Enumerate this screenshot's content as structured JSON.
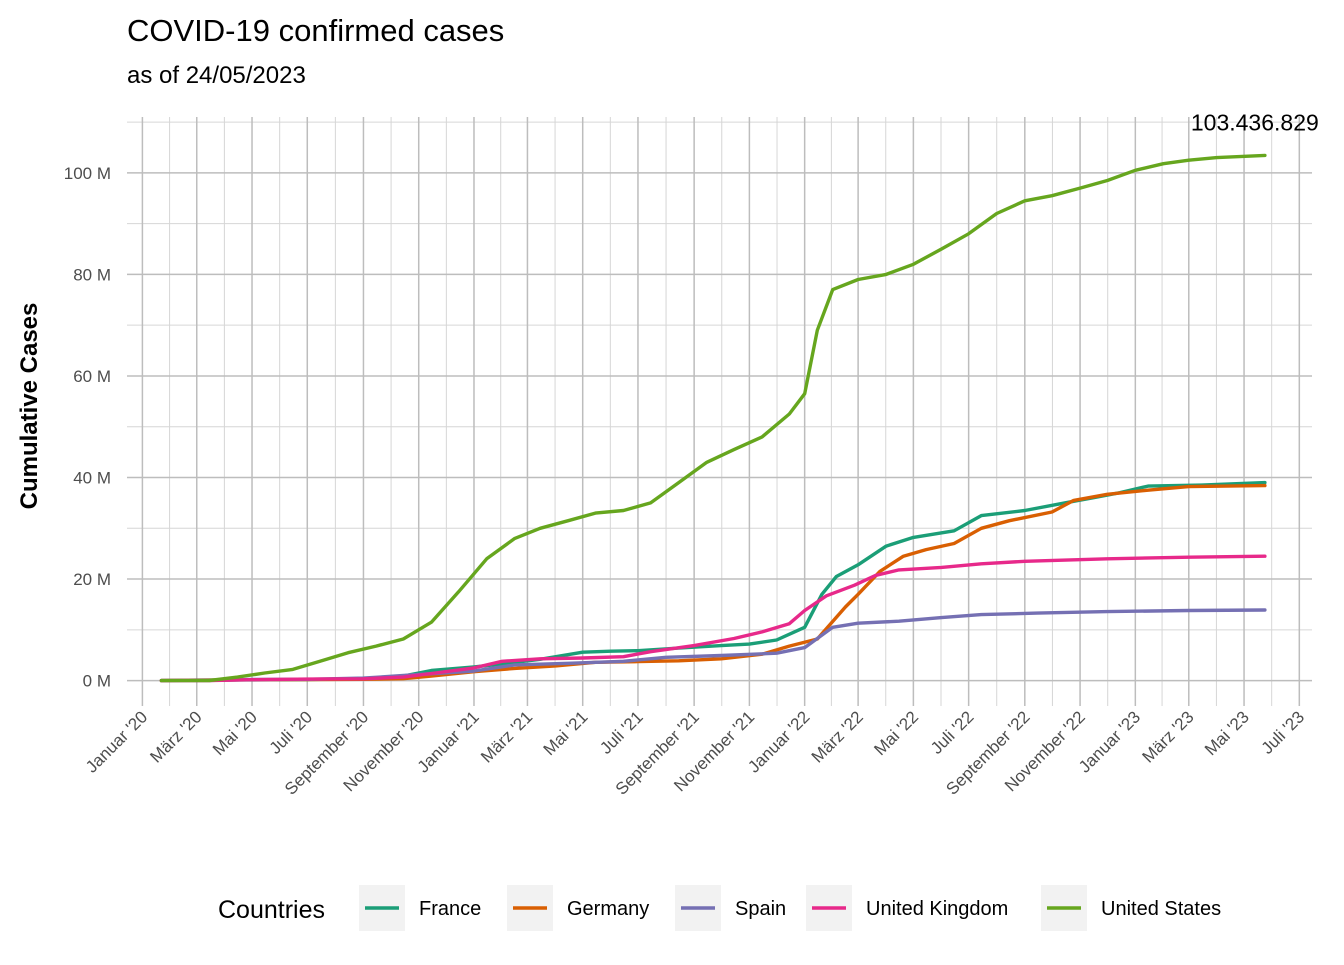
{
  "chart_data": {
    "type": "line",
    "title": "COVID-19 confirmed cases",
    "subtitle": "as of 24/05/2023",
    "xlabel": "",
    "ylabel": "Cumulative Cases",
    "x_range": [
      "2019-12-15",
      "2023-07-15"
    ],
    "ylim": [
      -5000000,
      111000000
    ],
    "y_ticks": [
      {
        "value": 0,
        "label": "0 M"
      },
      {
        "value": 20000000,
        "label": "20 M"
      },
      {
        "value": 40000000,
        "label": "40 M"
      },
      {
        "value": 60000000,
        "label": "60 M"
      },
      {
        "value": 80000000,
        "label": "80 M"
      },
      {
        "value": 100000000,
        "label": "100 M"
      }
    ],
    "x_ticks": [
      {
        "date": "2020-01-01",
        "label": "Januar '20"
      },
      {
        "date": "2020-03-01",
        "label": "März '20"
      },
      {
        "date": "2020-05-01",
        "label": "Mai '20"
      },
      {
        "date": "2020-07-01",
        "label": "Juli '20"
      },
      {
        "date": "2020-09-01",
        "label": "September '20"
      },
      {
        "date": "2020-11-01",
        "label": "November '20"
      },
      {
        "date": "2021-01-01",
        "label": "Januar '21"
      },
      {
        "date": "2021-03-01",
        "label": "März '21"
      },
      {
        "date": "2021-05-01",
        "label": "Mai '21"
      },
      {
        "date": "2021-07-01",
        "label": "Juli '21"
      },
      {
        "date": "2021-09-01",
        "label": "September '21"
      },
      {
        "date": "2021-11-01",
        "label": "November '21"
      },
      {
        "date": "2022-01-01",
        "label": "Januar '22"
      },
      {
        "date": "2022-03-01",
        "label": "März '22"
      },
      {
        "date": "2022-05-01",
        "label": "Mai '22"
      },
      {
        "date": "2022-07-01",
        "label": "Juli '22"
      },
      {
        "date": "2022-09-01",
        "label": "September '22"
      },
      {
        "date": "2022-11-01",
        "label": "November '22"
      },
      {
        "date": "2023-01-01",
        "label": "Januar '23"
      },
      {
        "date": "2023-03-01",
        "label": "März '23"
      },
      {
        "date": "2023-05-01",
        "label": "Mai '23"
      },
      {
        "date": "2023-07-01",
        "label": "Juli '23"
      }
    ],
    "grid": true,
    "legend_title": "Countries",
    "legend_position": "bottom",
    "annotation": {
      "text": "103.436.829",
      "date": "2023-05-24",
      "value": 103436829
    },
    "series": [
      {
        "name": "France",
        "color": "#1B9E77",
        "points": [
          [
            "2020-01-22",
            0
          ],
          [
            "2020-03-01",
            100000
          ],
          [
            "2020-05-01",
            150000
          ],
          [
            "2020-07-01",
            200000
          ],
          [
            "2020-09-01",
            400000
          ],
          [
            "2020-10-15",
            900000
          ],
          [
            "2020-11-15",
            2000000
          ],
          [
            "2021-01-01",
            2700000
          ],
          [
            "2021-02-01",
            3300000
          ],
          [
            "2021-03-15",
            4200000
          ],
          [
            "2021-05-01",
            5600000
          ],
          [
            "2021-06-01",
            5800000
          ],
          [
            "2021-07-01",
            5900000
          ],
          [
            "2021-08-15",
            6400000
          ],
          [
            "2021-10-01",
            6900000
          ],
          [
            "2021-11-01",
            7200000
          ],
          [
            "2021-12-01",
            8000000
          ],
          [
            "2022-01-01",
            10500000
          ],
          [
            "2022-01-20",
            17000000
          ],
          [
            "2022-02-05",
            20500000
          ],
          [
            "2022-03-01",
            22800000
          ],
          [
            "2022-04-01",
            26500000
          ],
          [
            "2022-05-01",
            28200000
          ],
          [
            "2022-06-15",
            29500000
          ],
          [
            "2022-07-15",
            32500000
          ],
          [
            "2022-09-01",
            33500000
          ],
          [
            "2022-10-15",
            35000000
          ],
          [
            "2022-11-15",
            36000000
          ],
          [
            "2022-12-15",
            37000000
          ],
          [
            "2023-01-15",
            38300000
          ],
          [
            "2023-03-15",
            38500000
          ],
          [
            "2023-05-24",
            39000000
          ]
        ]
      },
      {
        "name": "Germany",
        "color": "#D95F02",
        "points": [
          [
            "2020-01-22",
            0
          ],
          [
            "2020-03-15",
            100000
          ],
          [
            "2020-05-01",
            170000
          ],
          [
            "2020-07-01",
            200000
          ],
          [
            "2020-09-01",
            260000
          ],
          [
            "2020-10-15",
            380000
          ],
          [
            "2020-11-15",
            900000
          ],
          [
            "2021-01-01",
            1750000
          ],
          [
            "2021-02-15",
            2400000
          ],
          [
            "2021-04-01",
            2900000
          ],
          [
            "2021-05-15",
            3600000
          ],
          [
            "2021-07-01",
            3750000
          ],
          [
            "2021-08-15",
            3900000
          ],
          [
            "2021-10-01",
            4300000
          ],
          [
            "2021-11-15",
            5200000
          ],
          [
            "2021-12-15",
            6800000
          ],
          [
            "2022-01-15",
            8200000
          ],
          [
            "2022-02-15",
            14500000
          ],
          [
            "2022-03-01",
            17000000
          ],
          [
            "2022-03-25",
            21500000
          ],
          [
            "2022-04-20",
            24500000
          ],
          [
            "2022-05-15",
            25800000
          ],
          [
            "2022-06-15",
            27000000
          ],
          [
            "2022-07-15",
            30000000
          ],
          [
            "2022-08-15",
            31500000
          ],
          [
            "2022-10-01",
            33200000
          ],
          [
            "2022-10-25",
            35500000
          ],
          [
            "2022-12-01",
            36700000
          ],
          [
            "2023-01-15",
            37500000
          ],
          [
            "2023-03-01",
            38200000
          ],
          [
            "2023-05-24",
            38400000
          ]
        ]
      },
      {
        "name": "Spain",
        "color": "#7570B3",
        "points": [
          [
            "2020-01-22",
            0
          ],
          [
            "2020-03-15",
            50000
          ],
          [
            "2020-05-01",
            220000
          ],
          [
            "2020-07-01",
            250000
          ],
          [
            "2020-09-01",
            500000
          ],
          [
            "2020-11-01",
            1200000
          ],
          [
            "2021-01-01",
            1900000
          ],
          [
            "2021-02-15",
            3100000
          ],
          [
            "2021-04-15",
            3400000
          ],
          [
            "2021-06-15",
            3800000
          ],
          [
            "2021-08-01",
            4600000
          ],
          [
            "2021-10-01",
            4950000
          ],
          [
            "2021-12-01",
            5400000
          ],
          [
            "2022-01-01",
            6500000
          ],
          [
            "2022-02-01",
            10500000
          ],
          [
            "2022-03-01",
            11300000
          ],
          [
            "2022-04-15",
            11700000
          ],
          [
            "2022-06-01",
            12400000
          ],
          [
            "2022-07-15",
            13000000
          ],
          [
            "2022-09-15",
            13300000
          ],
          [
            "2022-12-01",
            13600000
          ],
          [
            "2023-03-01",
            13800000
          ],
          [
            "2023-05-24",
            13900000
          ]
        ]
      },
      {
        "name": "United Kingdom",
        "color": "#E7298A",
        "points": [
          [
            "2020-01-22",
            0
          ],
          [
            "2020-03-15",
            10000
          ],
          [
            "2020-05-01",
            180000
          ],
          [
            "2020-07-01",
            300000
          ],
          [
            "2020-09-01",
            350000
          ],
          [
            "2020-10-15",
            700000
          ],
          [
            "2020-11-15",
            1400000
          ],
          [
            "2021-01-01",
            2500000
          ],
          [
            "2021-02-01",
            3800000
          ],
          [
            "2021-03-15",
            4300000
          ],
          [
            "2021-05-01",
            4450000
          ],
          [
            "2021-06-15",
            4700000
          ],
          [
            "2021-07-15",
            5700000
          ],
          [
            "2021-09-01",
            6900000
          ],
          [
            "2021-10-15",
            8300000
          ],
          [
            "2021-11-15",
            9600000
          ],
          [
            "2021-12-15",
            11200000
          ],
          [
            "2022-01-01",
            13800000
          ],
          [
            "2022-01-25",
            16700000
          ],
          [
            "2022-02-25",
            18800000
          ],
          [
            "2022-03-20",
            20700000
          ],
          [
            "2022-04-15",
            21800000
          ],
          [
            "2022-06-01",
            22300000
          ],
          [
            "2022-07-15",
            23000000
          ],
          [
            "2022-09-01",
            23500000
          ],
          [
            "2022-12-01",
            24000000
          ],
          [
            "2023-03-01",
            24300000
          ],
          [
            "2023-05-24",
            24500000
          ]
        ]
      },
      {
        "name": "United States",
        "color": "#66A61E",
        "points": [
          [
            "2020-01-22",
            0
          ],
          [
            "2020-03-15",
            20000
          ],
          [
            "2020-04-15",
            700000
          ],
          [
            "2020-05-15",
            1500000
          ],
          [
            "2020-06-15",
            2200000
          ],
          [
            "2020-07-15",
            3800000
          ],
          [
            "2020-08-15",
            5500000
          ],
          [
            "2020-09-15",
            6800000
          ],
          [
            "2020-10-15",
            8200000
          ],
          [
            "2020-11-15",
            11500000
          ],
          [
            "2020-12-15",
            17500000
          ],
          [
            "2021-01-15",
            24000000
          ],
          [
            "2021-02-15",
            28000000
          ],
          [
            "2021-03-15",
            30000000
          ],
          [
            "2021-04-15",
            31500000
          ],
          [
            "2021-05-15",
            33000000
          ],
          [
            "2021-06-15",
            33500000
          ],
          [
            "2021-07-15",
            35000000
          ],
          [
            "2021-08-15",
            39000000
          ],
          [
            "2021-09-15",
            43000000
          ],
          [
            "2021-10-15",
            45500000
          ],
          [
            "2021-11-15",
            48000000
          ],
          [
            "2021-12-15",
            52500000
          ],
          [
            "2022-01-01",
            56500000
          ],
          [
            "2022-01-15",
            69000000
          ],
          [
            "2022-02-01",
            77000000
          ],
          [
            "2022-03-01",
            79000000
          ],
          [
            "2022-04-01",
            80000000
          ],
          [
            "2022-05-01",
            82000000
          ],
          [
            "2022-06-01",
            85000000
          ],
          [
            "2022-07-01",
            88000000
          ],
          [
            "2022-08-01",
            92000000
          ],
          [
            "2022-09-01",
            94500000
          ],
          [
            "2022-10-01",
            95500000
          ],
          [
            "2022-11-01",
            97000000
          ],
          [
            "2022-12-01",
            98500000
          ],
          [
            "2023-01-01",
            100500000
          ],
          [
            "2023-02-01",
            101800000
          ],
          [
            "2023-03-01",
            102500000
          ],
          [
            "2023-04-01",
            103000000
          ],
          [
            "2023-05-24",
            103436829
          ]
        ]
      }
    ]
  }
}
